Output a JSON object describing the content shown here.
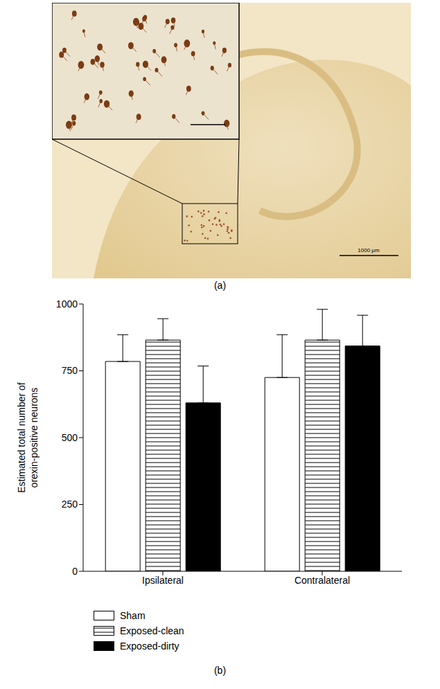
{
  "panel_labels": [
    "(a)",
    "(b)"
  ],
  "micrograph": {
    "scale_bar": "1000 μm"
  },
  "chart_data": {
    "type": "bar",
    "y_label": "Estimated total number of orexin-positive neurons",
    "categories": [
      "Ipsilateral",
      "Contralateral"
    ],
    "series": [
      {
        "name": "Sham",
        "color": "#ffffff",
        "values": [
          785,
          725
        ],
        "errors": [
          100,
          160
        ]
      },
      {
        "name": "Exposed-clean",
        "color": "#ffffff",
        "values": [
          865,
          865
        ],
        "errors": [
          80,
          115
        ]
      },
      {
        "name": "Exposed-dirty",
        "color": "#000000",
        "values": [
          630,
          843
        ],
        "errors": [
          138,
          115
        ]
      }
    ],
    "ylim": [
      0,
      1000
    ],
    "yticks": [
      0,
      250,
      500,
      750,
      1000
    ],
    "legend": "bottom-left"
  }
}
